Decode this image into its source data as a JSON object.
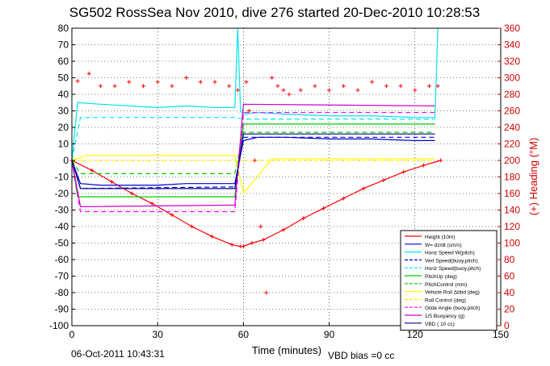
{
  "chart_data": {
    "type": "line",
    "title": "SG502 RossSea Nov 2010, dive 276 started 20-Dec-2010 10:28:53",
    "xlabel": "Time (minutes)",
    "ylabel_right": "(+) Heading (°M)",
    "xlim": [
      0,
      150
    ],
    "ylim": [
      -100,
      80
    ],
    "ylim_right": [
      0,
      360
    ],
    "x_ticks": [
      0,
      30,
      60,
      90,
      120,
      150
    ],
    "y_ticks": [
      -100,
      -90,
      -80,
      -70,
      -60,
      -50,
      -40,
      -30,
      -20,
      -10,
      0,
      10,
      20,
      30,
      40,
      50,
      60,
      70,
      80
    ],
    "y_ticks_right": [
      0,
      20,
      40,
      60,
      80,
      100,
      120,
      140,
      160,
      180,
      200,
      220,
      240,
      260,
      280,
      300,
      320,
      340,
      360
    ],
    "grid": true,
    "legend_position": "bottom-right",
    "series": [
      {
        "name": "Height (10m)",
        "color": "#ff0000",
        "style": "solid-markers",
        "x": [
          0,
          7,
          14,
          21,
          28,
          35,
          42,
          49,
          56,
          59,
          60,
          63,
          67,
          74,
          81,
          88,
          95,
          102,
          109,
          116,
          123,
          129
        ],
        "y": [
          0,
          -6,
          -13,
          -20,
          -26,
          -33,
          -40,
          -46,
          -51,
          -52,
          -52,
          -50,
          -48,
          -42,
          -35,
          -29,
          -23,
          -17,
          -12,
          -7,
          -3,
          0
        ]
      },
      {
        "name": "W= dz/dt (cm/s)",
        "color": "#0000cc",
        "style": "solid",
        "x": [
          0,
          3,
          10,
          20,
          30,
          40,
          50,
          57,
          60,
          65,
          75,
          90,
          105,
          120,
          127
        ],
        "y": [
          0,
          -14,
          -15,
          -15,
          -15,
          -14,
          -14,
          -14,
          12,
          14,
          14,
          13,
          13,
          12,
          12
        ]
      },
      {
        "name": "Horiz Speed W(pitch)",
        "color": "#00e5ee",
        "style": "solid",
        "x": [
          0,
          2,
          10,
          20,
          30,
          40,
          50,
          57,
          58,
          59,
          60,
          65,
          75,
          90,
          105,
          120,
          127,
          128
        ],
        "y": [
          0,
          35,
          34,
          33,
          32,
          33,
          32,
          32,
          80,
          30,
          28,
          29,
          28,
          27,
          27,
          26,
          26,
          80
        ]
      },
      {
        "name": "Vert Speed(buoy,pitch)",
        "color": "#0000ff",
        "style": "dashed",
        "x": [
          0,
          3,
          57,
          60,
          127
        ],
        "y": [
          0,
          -17,
          -16,
          14,
          14
        ]
      },
      {
        "name": "Horiz Speed(buoy,pitch)",
        "color": "#00e5ee",
        "style": "dashed",
        "x": [
          0,
          3,
          57,
          60,
          127
        ],
        "y": [
          0,
          26,
          26,
          25,
          25
        ]
      },
      {
        "name": "PitchUp (deg)",
        "color": "#00cc00",
        "style": "solid",
        "x": [
          0,
          2,
          57,
          60,
          127
        ],
        "y": [
          0,
          -22,
          -22,
          22,
          22
        ]
      },
      {
        "name": "PitchControl (mm)",
        "color": "#00cc00",
        "style": "dashed",
        "x": [
          0,
          3,
          57,
          60,
          127
        ],
        "y": [
          0,
          -8,
          -8,
          17,
          17
        ]
      },
      {
        "name": "Vehicle Roll Δbbd (deg)",
        "color": "#ffff00",
        "style": "solid",
        "x": [
          0,
          5,
          15,
          25,
          35,
          45,
          57,
          60,
          70,
          90,
          110,
          127
        ],
        "y": [
          0,
          3,
          3,
          3,
          3,
          3,
          3,
          -20,
          1,
          1,
          1,
          1
        ]
      },
      {
        "name": "Roll Control (deg)",
        "color": "#ffff00",
        "style": "dashed",
        "x": [
          0,
          57,
          60,
          127
        ],
        "y": [
          0,
          0,
          0,
          0
        ]
      },
      {
        "name": "Glide Angle (buoy,pitch)",
        "color": "#ff00ff",
        "style": "dashed",
        "x": [
          0,
          3,
          57,
          60,
          127
        ],
        "y": [
          0,
          -31,
          -31,
          29,
          29
        ]
      },
      {
        "name": "1/5 Buoyancy (g)",
        "color": "#cc00cc",
        "style": "solid",
        "x": [
          0,
          3,
          57,
          60,
          127
        ],
        "y": [
          0,
          -28,
          -27,
          34,
          33
        ]
      },
      {
        "name": "VBD ( 10 cc)",
        "color": "#00008b",
        "style": "solid",
        "x": [
          0,
          3,
          57,
          60,
          127
        ],
        "y": [
          0,
          -17,
          -17,
          16,
          16
        ]
      },
      {
        "name": "(+) Heading",
        "color": "#ff0000",
        "style": "markers",
        "axis": "right",
        "x": [
          2,
          6,
          10,
          15,
          20,
          25,
          30,
          35,
          40,
          45,
          50,
          55,
          58,
          61,
          62,
          64,
          66,
          68,
          70,
          72,
          74,
          76,
          80,
          85,
          90,
          95,
          100,
          105,
          110,
          115,
          120,
          125,
          128
        ],
        "y": [
          296,
          305,
          290,
          290,
          295,
          290,
          295,
          290,
          300,
          295,
          295,
          290,
          285,
          295,
          260,
          200,
          120,
          40,
          300,
          290,
          285,
          280,
          285,
          290,
          285,
          290,
          285,
          295,
          290,
          290,
          285,
          290,
          290
        ]
      }
    ]
  },
  "footer": {
    "timestamp": "06-Oct-2011 10:43:31",
    "vbd_bias": "VBD bias =0 cc"
  }
}
